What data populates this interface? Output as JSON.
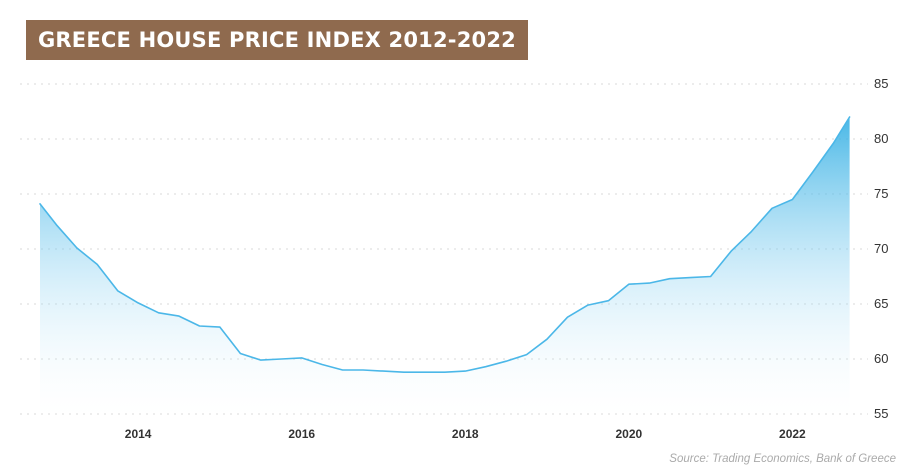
{
  "title": "GREECE HOUSE PRICE INDEX 2012-2022",
  "source": "Source: Trading Economics, Bank of Greece",
  "colors": {
    "title_bg": "#8f6a4e",
    "line": "#4bb7e8",
    "fill_top": "#29abe2",
    "grid": "#d9d9d9"
  },
  "chart_data": {
    "type": "area",
    "title": "GREECE HOUSE PRICE INDEX 2012-2022",
    "xlabel": "",
    "ylabel": "",
    "xlim": [
      2012.8,
      2022.9
    ],
    "ylim": [
      55,
      85
    ],
    "x_ticks": [
      "2014",
      "2016",
      "2018",
      "2020",
      "2022"
    ],
    "y_ticks": [
      "55",
      "60",
      "65",
      "70",
      "75",
      "80",
      "85"
    ],
    "y_axis_position": "right",
    "grid": "horizontal dotted",
    "legend": "none",
    "series": [
      {
        "x": [
          2012.8,
          2013.0,
          2013.25,
          2013.5,
          2013.75,
          2014.0,
          2014.25,
          2014.5,
          2014.75,
          2015.0,
          2015.25,
          2015.5,
          2015.75,
          2016.0,
          2016.25,
          2016.5,
          2016.75,
          2017.0,
          2017.25,
          2017.5,
          2017.75,
          2018.0,
          2018.25,
          2018.5,
          2018.75,
          2019.0,
          2019.25,
          2019.5,
          2019.75,
          2020.0,
          2020.25,
          2020.5,
          2020.75,
          2021.0,
          2021.25,
          2021.5,
          2021.75,
          2022.0,
          2022.25,
          2022.5,
          2022.7
        ],
        "values": [
          74.1,
          72.2,
          70.1,
          68.6,
          66.2,
          65.1,
          64.2,
          63.9,
          63.0,
          62.9,
          60.5,
          59.9,
          60.0,
          60.1,
          59.5,
          59.0,
          59.0,
          58.9,
          58.8,
          58.8,
          58.8,
          58.9,
          59.3,
          59.8,
          60.4,
          61.8,
          63.8,
          64.9,
          65.3,
          66.8,
          66.9,
          67.3,
          67.4,
          67.5,
          69.8,
          71.6,
          73.7,
          74.5,
          77.0,
          79.6,
          82.0
        ]
      }
    ]
  }
}
